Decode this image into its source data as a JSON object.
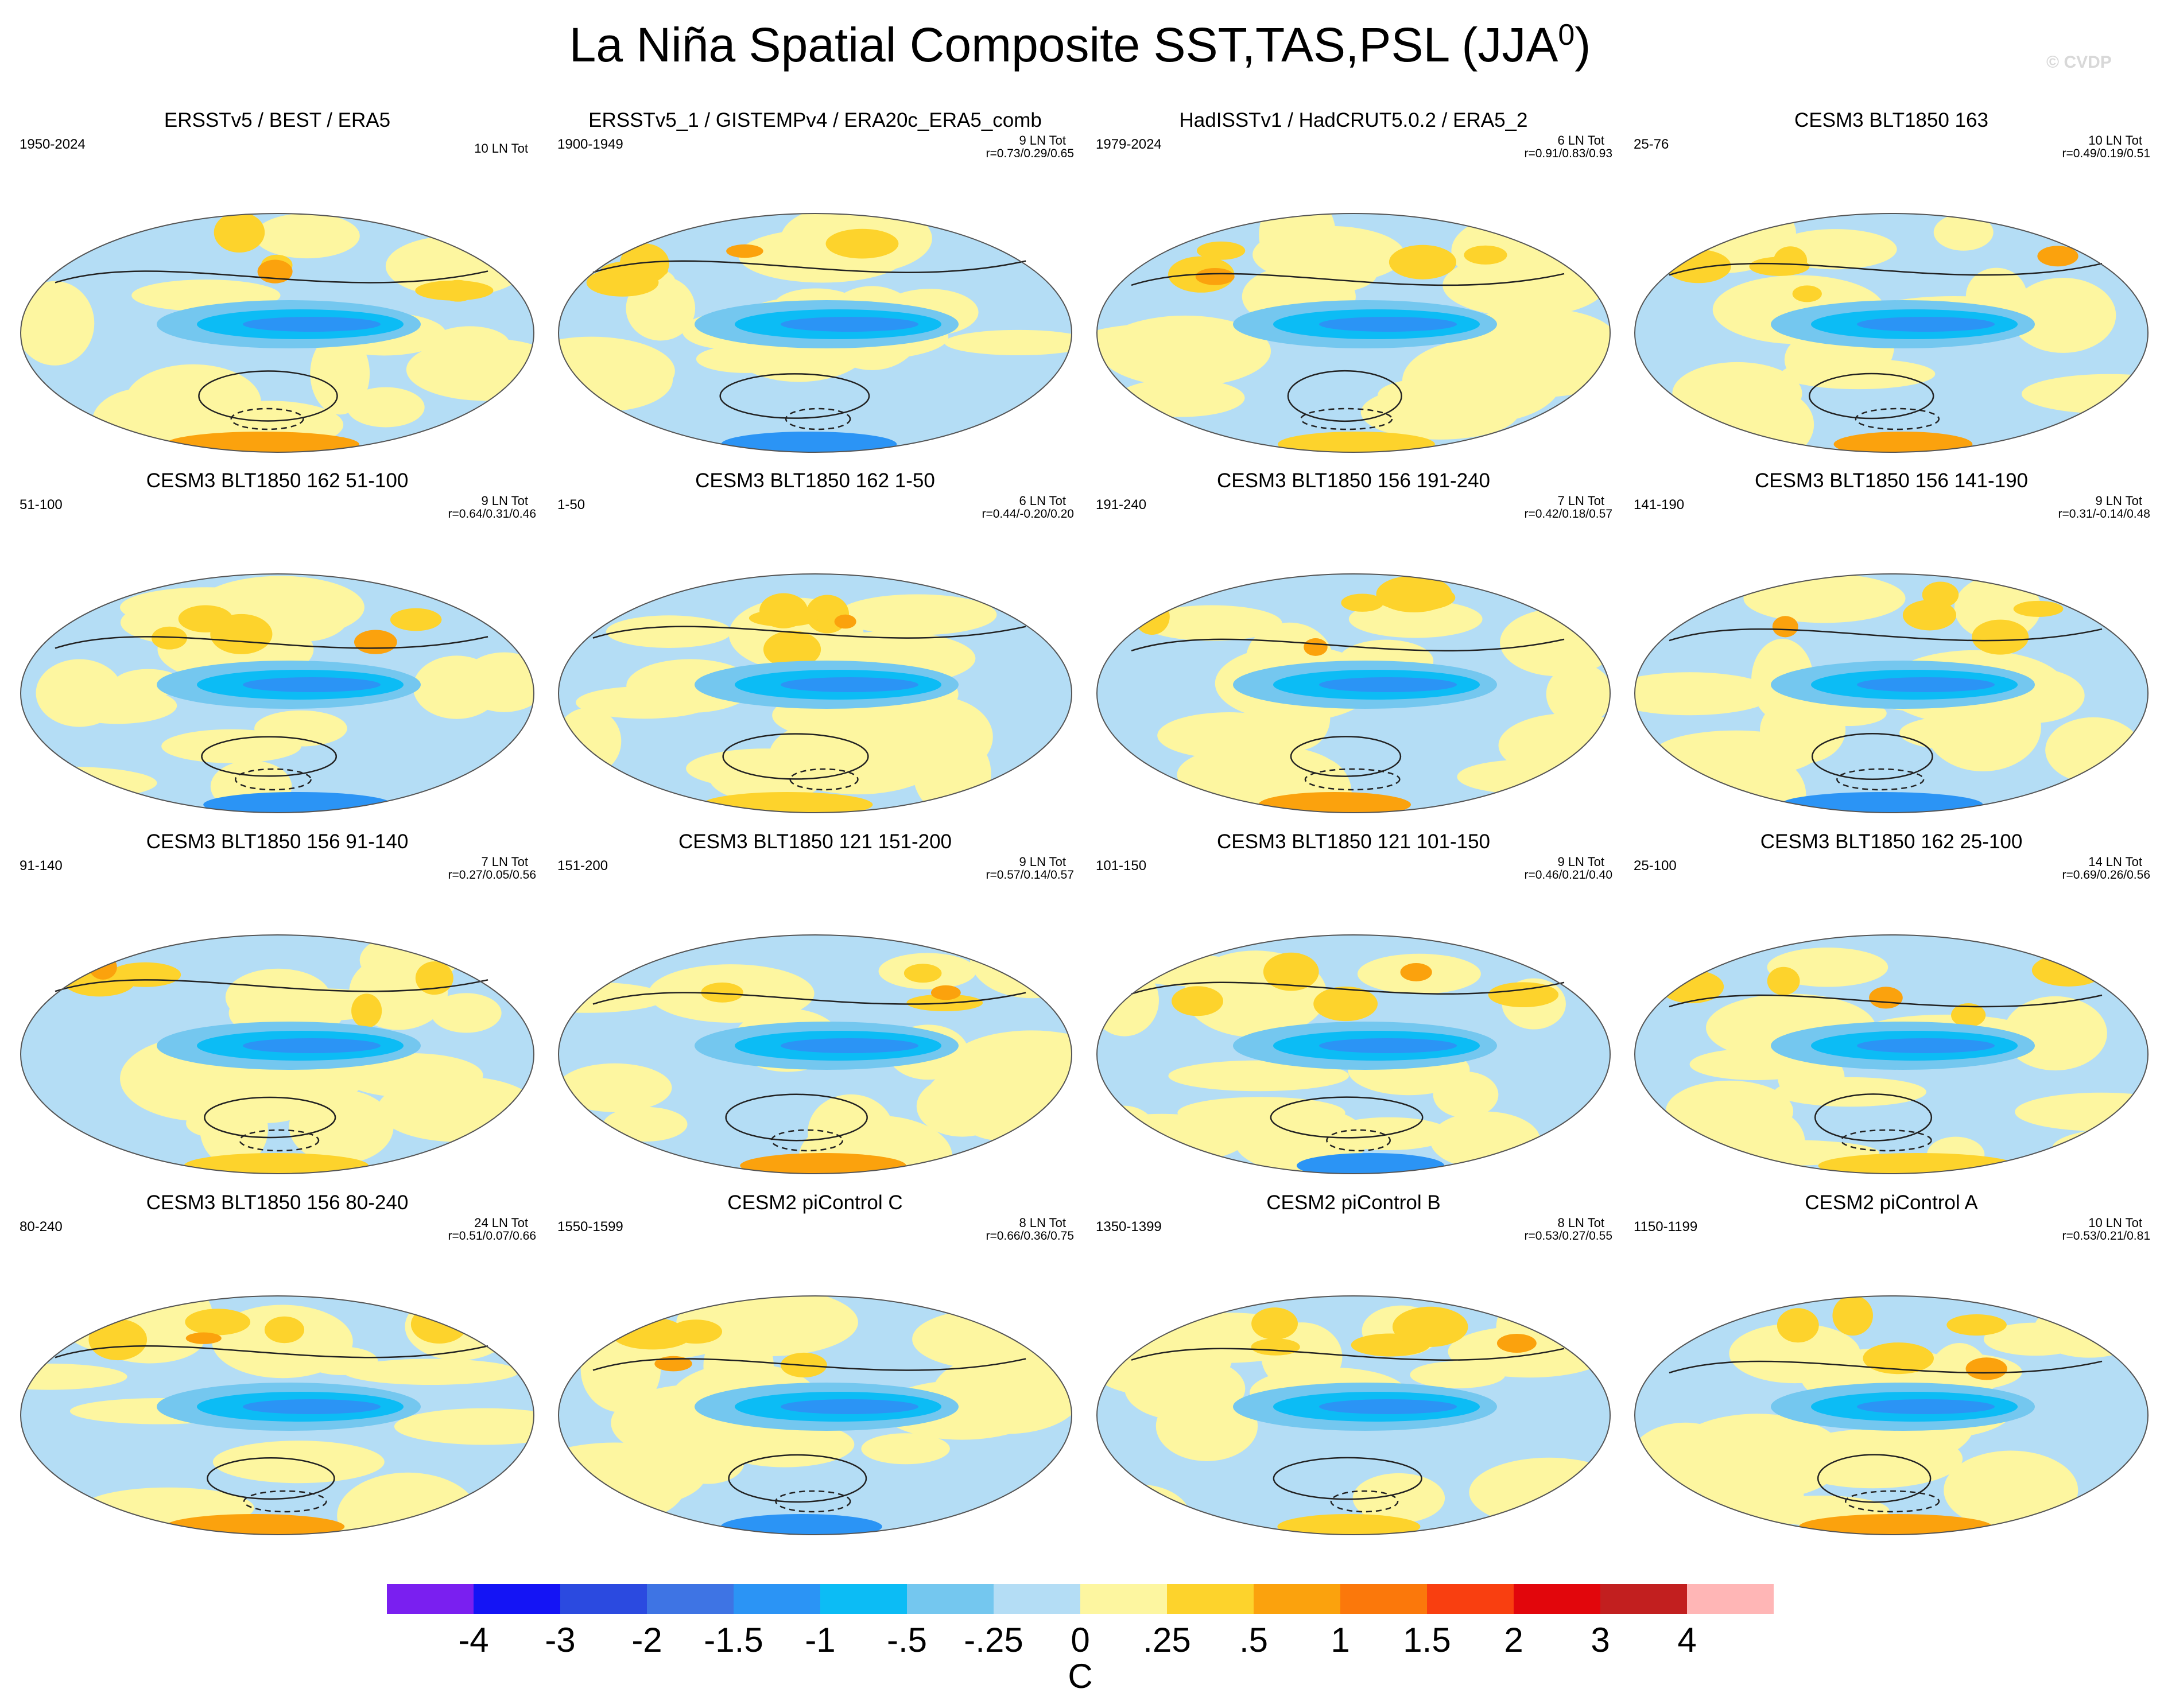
{
  "title": {
    "main": "La Niña Spatial Composite SST,TAS,PSL (JJA",
    "sup": "0",
    "close": ")"
  },
  "watermark": "© CVDP",
  "panels": [
    {
      "title": "ERSSTv5 / BEST / ERA5",
      "range": "1950-2024",
      "count": "10 LN Tot",
      "corr": ""
    },
    {
      "title": "ERSSTv5_1 / GISTEMPv4 / ERA20c_ERA5_comb",
      "range": "1900-1949",
      "count": "9 LN Tot",
      "corr": "r=0.73/0.29/0.65"
    },
    {
      "title": "HadISSTv1 / HadCRUT5.0.2 / ERA5_2",
      "range": "1979-2024",
      "count": "6 LN Tot",
      "corr": "r=0.91/0.83/0.93"
    },
    {
      "title": "CESM3 BLT1850 163",
      "range": "25-76",
      "count": "10 LN Tot",
      "corr": "r=0.49/0.19/0.51"
    },
    {
      "title": "CESM3 BLT1850 162 51-100",
      "range": "51-100",
      "count": "9 LN Tot",
      "corr": "r=0.64/0.31/0.46"
    },
    {
      "title": "CESM3 BLT1850 162 1-50",
      "range": "1-50",
      "count": "6 LN Tot",
      "corr": "r=0.44/-0.20/0.20"
    },
    {
      "title": "CESM3 BLT1850 156 191-240",
      "range": "191-240",
      "count": "7 LN Tot",
      "corr": "r=0.42/0.18/0.57"
    },
    {
      "title": "CESM3 BLT1850 156 141-190",
      "range": "141-190",
      "count": "9 LN Tot",
      "corr": "r=0.31/-0.14/0.48"
    },
    {
      "title": "CESM3 BLT1850 156 91-140",
      "range": "91-140",
      "count": "7 LN Tot",
      "corr": "r=0.27/0.05/0.56"
    },
    {
      "title": "CESM3 BLT1850 121 151-200",
      "range": "151-200",
      "count": "9 LN Tot",
      "corr": "r=0.57/0.14/0.57"
    },
    {
      "title": "CESM3 BLT1850 121 101-150",
      "range": "101-150",
      "count": "9 LN Tot",
      "corr": "r=0.46/0.21/0.40"
    },
    {
      "title": "CESM3 BLT1850 162 25-100",
      "range": "25-100",
      "count": "14 LN Tot",
      "corr": "r=0.69/0.26/0.56"
    },
    {
      "title": "CESM3 BLT1850 156 80-240",
      "range": "80-240",
      "count": "24 LN Tot",
      "corr": "r=0.51/0.07/0.66"
    },
    {
      "title": "CESM2 piControl C",
      "range": "1550-1599",
      "count": "8 LN Tot",
      "corr": "r=0.66/0.36/0.75"
    },
    {
      "title": "CESM2 piControl B",
      "range": "1350-1399",
      "count": "8 LN Tot",
      "corr": "r=0.53/0.27/0.55"
    },
    {
      "title": "CESM2 piControl A",
      "range": "1150-1199",
      "count": "10 LN Tot",
      "corr": "r=0.53/0.21/0.81"
    }
  ],
  "chart_data": {
    "type": "heatmap",
    "title": "La Niña Spatial Composite SST,TAS,PSL (JJA0)",
    "variables": [
      "SST",
      "TAS",
      "PSL"
    ],
    "projection": "Robinson (global)",
    "contours": "PSL (solid = positive, dashed = negative)",
    "colorbar": {
      "unit": "C",
      "levels": [
        "-4",
        "-3",
        "-2",
        "-1.5",
        "-1",
        "-.5",
        "-.25",
        "0",
        ".25",
        ".5",
        "1",
        "1.5",
        "2",
        "3",
        "4"
      ],
      "colors": [
        "#7a1ff0",
        "#1414f5",
        "#2b4ae0",
        "#3e74e4",
        "#2b94f5",
        "#0cbcf5",
        "#74c7ef",
        "#b4ddf5",
        "#fdf6a0",
        "#fdd32c",
        "#fba20d",
        "#fb780b",
        "#f93f10",
        "#e2060c",
        "#c21f1f",
        "#ffb6b6"
      ]
    },
    "panel_count": 16
  }
}
